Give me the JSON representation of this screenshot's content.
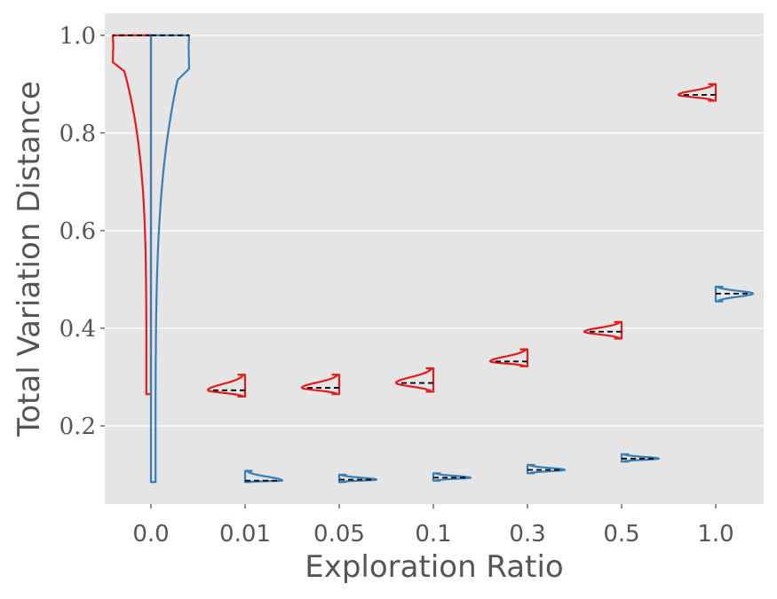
{
  "chart_data": {
    "type": "violin",
    "title": "",
    "xlabel": "Exploration Ratio",
    "ylabel": "Total Variation Distance",
    "categories": [
      "0.0",
      "0.01",
      "0.05",
      "0.1",
      "0.3",
      "0.5",
      "1.0"
    ],
    "yticks": [
      "0.2",
      "0.4",
      "0.6",
      "0.8",
      "1.0"
    ],
    "ylim": [
      0.04,
      1.045
    ],
    "grid": true,
    "legend": "none",
    "series": [
      {
        "color": "#e41a1c",
        "side": "left",
        "violins": [
          {
            "min": 0.265,
            "max": 1.0,
            "median": 1.0
          },
          {
            "min": 0.26,
            "max": 0.305,
            "median": 0.273
          },
          {
            "min": 0.265,
            "max": 0.305,
            "median": 0.278
          },
          {
            "min": 0.27,
            "max": 0.318,
            "median": 0.288
          },
          {
            "min": 0.322,
            "max": 0.357,
            "median": 0.332
          },
          {
            "min": 0.379,
            "max": 0.413,
            "median": 0.393
          },
          {
            "min": 0.866,
            "max": 0.9,
            "median": 0.878
          }
        ]
      },
      {
        "color": "#377eb8",
        "side": "right",
        "violins": [
          {
            "min": 0.085,
            "max": 1.0,
            "median": 1.0
          },
          {
            "min": 0.085,
            "max": 0.108,
            "median": 0.088
          },
          {
            "min": 0.085,
            "max": 0.1,
            "median": 0.09
          },
          {
            "min": 0.088,
            "max": 0.103,
            "median": 0.094
          },
          {
            "min": 0.103,
            "max": 0.12,
            "median": 0.11
          },
          {
            "min": 0.127,
            "max": 0.142,
            "median": 0.133
          },
          {
            "min": 0.455,
            "max": 0.485,
            "median": 0.471
          }
        ]
      }
    ]
  }
}
